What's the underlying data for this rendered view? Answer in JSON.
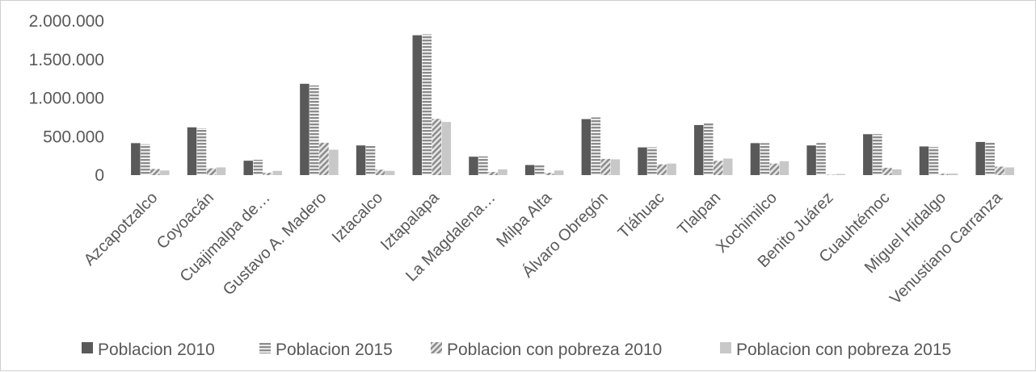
{
  "chart_data": {
    "type": "bar",
    "title": "",
    "xlabel": "",
    "ylabel": "",
    "ylim": [
      0,
      2000000
    ],
    "y_ticks": [
      {
        "value": 0,
        "label": "0"
      },
      {
        "value": 500000,
        "label": "500.000"
      },
      {
        "value": 1000000,
        "label": "1.000.000"
      },
      {
        "value": 1500000,
        "label": "1.500.000"
      },
      {
        "value": 2000000,
        "label": "2.000.000"
      }
    ],
    "grid": false,
    "legend_position": "bottom",
    "categories": [
      "Azcapotzalco",
      "Coyoacán",
      "Cuajimalpa de…",
      "Gustavo A. Madero",
      "Iztacalco",
      "Iztapalapa",
      "La Magdalena…",
      "Milpa Alta",
      "Álvaro Obregón",
      "Tláhuac",
      "Tlalpan",
      "Xochimilco",
      "Benito Juárez",
      "Cuauhtémoc",
      "Miguel Hidalgo",
      "Venustiano Carranza"
    ],
    "series": [
      {
        "name": "Poblacion 2010",
        "pattern": "solid",
        "color": "#595959",
        "values": [
          415000,
          620000,
          187000,
          1185000,
          385000,
          1815000,
          239000,
          131000,
          727000,
          360000,
          650000,
          415000,
          385000,
          531000,
          372000,
          430000
        ]
      },
      {
        "name": "Poblacion 2015",
        "pattern": "horizontal-stripes",
        "color": "#8c8c8c",
        "values": [
          400000,
          608000,
          199000,
          1164000,
          390000,
          1827000,
          243000,
          137000,
          749000,
          361000,
          677000,
          415000,
          417000,
          532000,
          364000,
          427000
        ]
      },
      {
        "name": "Poblacion con pobreza 2010",
        "pattern": "diagonal-stripes",
        "color": "#a6a6a6",
        "values": [
          80000,
          88000,
          30000,
          420000,
          70000,
          730000,
          41000,
          30000,
          210000,
          140000,
          185000,
          150000,
          5000,
          95000,
          18000,
          110000
        ]
      },
      {
        "name": "Poblacion con pobreza 2015",
        "pattern": "solid",
        "color": "#c8c8c8",
        "values": [
          60000,
          100000,
          55000,
          330000,
          55000,
          690000,
          75000,
          60000,
          205000,
          150000,
          215000,
          180000,
          15000,
          75000,
          20000,
          100000
        ]
      }
    ]
  }
}
